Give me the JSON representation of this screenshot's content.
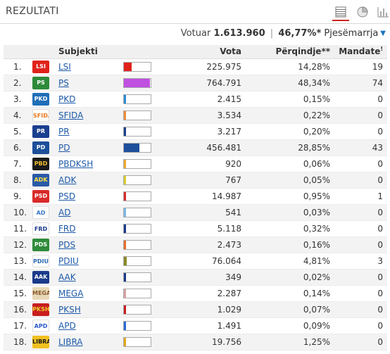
{
  "header": {
    "title": "REZULTATI",
    "views": [
      {
        "name": "table-view-icon",
        "active": true
      },
      {
        "name": "pie-view-icon",
        "active": false
      },
      {
        "name": "bar-view-icon",
        "active": false
      }
    ]
  },
  "summary": {
    "voted_label": "Votuar",
    "voted_value": "1.613.960",
    "separator": "|",
    "turnout": "46,77%*",
    "participation_label": "Pjesëmarrja",
    "chevron": "▼"
  },
  "table": {
    "columns": {
      "subject": "Subjekti",
      "votes": "Vota",
      "percent": "Përqindje**",
      "mandates": "Mandate",
      "mandates_sup": "!"
    },
    "rows": [
      {
        "rank": "1.",
        "name": "LSI",
        "votes": "225.975",
        "percent": "14,28%",
        "mandates": "19",
        "share": 0.1428,
        "color": "#e0221b",
        "logo_bg": "#e0221b",
        "logo_text": "LSI",
        "logo_fg": "#ffffff"
      },
      {
        "rank": "2.",
        "name": "PS",
        "votes": "764.791",
        "percent": "48,34%",
        "mandates": "74",
        "share": 0.4834,
        "color": "#c050e0",
        "logo_bg": "#2e8b3a",
        "logo_text": "PS",
        "logo_fg": "#ffffff"
      },
      {
        "rank": "3.",
        "name": "PKD",
        "votes": "2.415",
        "percent": "0,15%",
        "mandates": "0",
        "share": 0.0015,
        "color": "#2a8fd6",
        "logo_bg": "#1f6fb8",
        "logo_text": "PKD",
        "logo_fg": "#ffffff"
      },
      {
        "rank": "4.",
        "name": "SFIDA",
        "votes": "3.534",
        "percent": "0,22%",
        "mandates": "0",
        "share": 0.0022,
        "color": "#f08c3a",
        "logo_bg": "#ffffff",
        "logo_text": "SFIDA!",
        "logo_fg": "#e8781e"
      },
      {
        "rank": "5.",
        "name": "PR",
        "votes": "3.217",
        "percent": "0,20%",
        "mandates": "0",
        "share": 0.002,
        "color": "#1a3f8f",
        "logo_bg": "#1a3f8f",
        "logo_text": "PR",
        "logo_fg": "#ffffff"
      },
      {
        "rank": "6.",
        "name": "PD",
        "votes": "456.481",
        "percent": "28,85%",
        "mandates": "43",
        "share": 0.2885,
        "color": "#1d4f9a",
        "logo_bg": "#1d4f9a",
        "logo_text": "PD",
        "logo_fg": "#ffffff"
      },
      {
        "rank": "7.",
        "name": "PBDKSH",
        "votes": "920",
        "percent": "0,06%",
        "mandates": "0",
        "share": 0.0006,
        "color": "#f0a830",
        "logo_bg": "#1a1a1a",
        "logo_text": "PBD",
        "logo_fg": "#f0c030"
      },
      {
        "rank": "8.",
        "name": "ADK",
        "votes": "767",
        "percent": "0,05%",
        "mandates": "0",
        "share": 0.0005,
        "color": "#d8cc30",
        "logo_bg": "#2a5aa8",
        "logo_text": "ADK",
        "logo_fg": "#ffe040"
      },
      {
        "rank": "9.",
        "name": "PSD",
        "votes": "14.987",
        "percent": "0,95%",
        "mandates": "1",
        "share": 0.0095,
        "color": "#d92a2a",
        "logo_bg": "#d92a2a",
        "logo_text": "PSD",
        "logo_fg": "#ffffff"
      },
      {
        "rank": "10.",
        "name": "AD",
        "votes": "541",
        "percent": "0,03%",
        "mandates": "0",
        "share": 0.0003,
        "color": "#7ab8e8",
        "logo_bg": "#ffffff",
        "logo_text": "AD",
        "logo_fg": "#3a78c8"
      },
      {
        "rank": "11.",
        "name": "FRD",
        "votes": "5.118",
        "percent": "0,32%",
        "mandates": "0",
        "share": 0.0032,
        "color": "#1a3a8a",
        "logo_bg": "#ffffff",
        "logo_text": "FRD",
        "logo_fg": "#1a3a8a"
      },
      {
        "rank": "12.",
        "name": "PDS",
        "votes": "2.473",
        "percent": "0,16%",
        "mandates": "0",
        "share": 0.0016,
        "color": "#e86a2a",
        "logo_bg": "#2e8b3a",
        "logo_text": "PDS",
        "logo_fg": "#ffffff"
      },
      {
        "rank": "13.",
        "name": "PDIU",
        "votes": "76.064",
        "percent": "4,81%",
        "mandates": "3",
        "share": 0.0481,
        "color": "#8a8a2a",
        "logo_bg": "#ffffff",
        "logo_text": "PDIU",
        "logo_fg": "#2a6ab8"
      },
      {
        "rank": "14.",
        "name": "AAK",
        "votes": "349",
        "percent": "0,02%",
        "mandates": "0",
        "share": 0.0002,
        "color": "#1a3a8a",
        "logo_bg": "#1a3a8a",
        "logo_text": "AAK",
        "logo_fg": "#ffffff"
      },
      {
        "rank": "15.",
        "name": "MEGA",
        "votes": "2.287",
        "percent": "0,14%",
        "mandates": "0",
        "share": 0.0014,
        "color": "#d8a0a0",
        "logo_bg": "#e8d8b8",
        "logo_text": "MEGA",
        "logo_fg": "#8a5a2a"
      },
      {
        "rank": "16.",
        "name": "PKSH",
        "votes": "1.029",
        "percent": "0,07%",
        "mandates": "0",
        "share": 0.0007,
        "color": "#c81e1e",
        "logo_bg": "#c81e1e",
        "logo_text": "PKSH",
        "logo_fg": "#f0d030"
      },
      {
        "rank": "17.",
        "name": "APD",
        "votes": "1.491",
        "percent": "0,09%",
        "mandates": "0",
        "share": 0.0009,
        "color": "#2a6ad8",
        "logo_bg": "#ffffff",
        "logo_text": "APD",
        "logo_fg": "#2a5ac8"
      },
      {
        "rank": "18.",
        "name": "LIBRA",
        "votes": "19.756",
        "percent": "1,25%",
        "mandates": "0",
        "share": 0.0125,
        "color": "#e0a820",
        "logo_bg": "#f0c020",
        "logo_text": "LIBRA",
        "logo_fg": "#1a1a1a"
      }
    ]
  }
}
